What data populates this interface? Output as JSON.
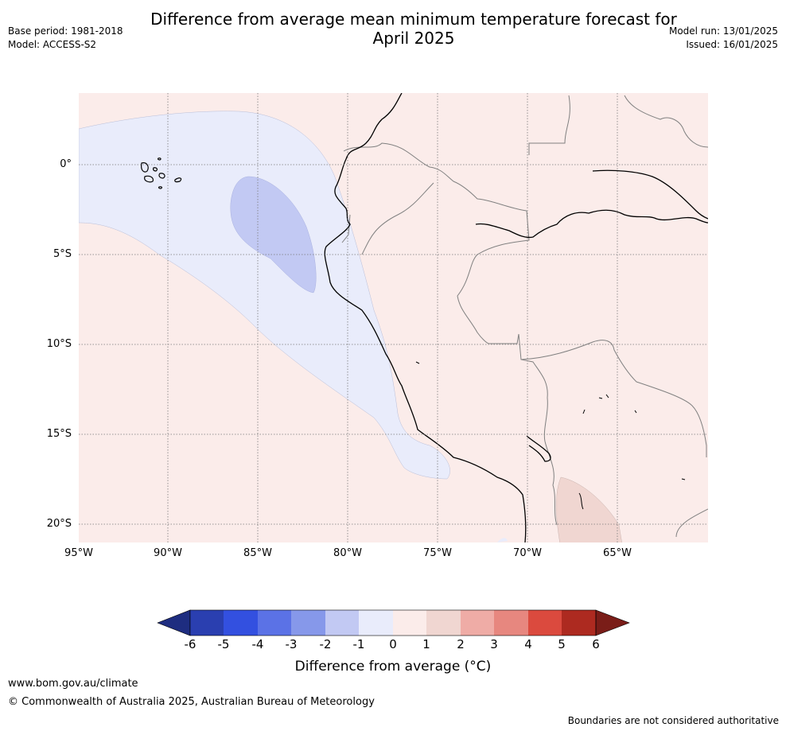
{
  "title_line1": "Difference from average mean minimum temperature forecast for",
  "title_line2": "April 2025",
  "meta_left": [
    "Base period: 1981-2018",
    "Model: ACCESS-S2"
  ],
  "meta_right": [
    "Model run: 13/01/2025",
    "Issued: 16/01/2025"
  ],
  "map": {
    "lat_labels": [
      "0°",
      "5°S",
      "10°S",
      "15°S",
      "20°S"
    ],
    "lon_labels": [
      "95°W",
      "90°W",
      "85°W",
      "80°W",
      "75°W",
      "70°W",
      "65°W"
    ]
  },
  "colorbar": {
    "title": "Difference from average (°C)",
    "ticks": [
      "-6",
      "-5",
      "-4",
      "-3",
      "-2",
      "-1",
      "0",
      "1",
      "2",
      "3",
      "4",
      "5",
      "6"
    ],
    "colors": [
      "#1e2d80",
      "#2a3fb0",
      "#3350e0",
      "#5b72e6",
      "#8698ea",
      "#c2c9f3",
      "#e9ecfb",
      "#fbecea",
      "#f0d6d1",
      "#efaca6",
      "#e7877f",
      "#db4a3e",
      "#ad2a20",
      "#7a1d18"
    ]
  },
  "footer": {
    "url": "www.bom.gov.au/climate",
    "copyright": "© Commonwealth of Australia 2025, Australian Bureau of Meteorology",
    "disclaimer": "Boundaries are not considered authoritative"
  }
}
